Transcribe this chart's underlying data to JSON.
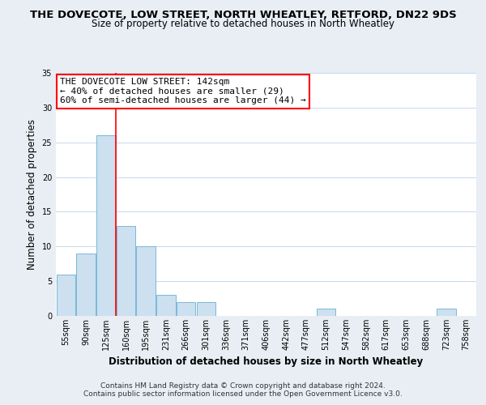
{
  "title": "THE DOVECOTE, LOW STREET, NORTH WHEATLEY, RETFORD, DN22 9DS",
  "subtitle": "Size of property relative to detached houses in North Wheatley",
  "xlabel": "Distribution of detached houses by size in North Wheatley",
  "ylabel": "Number of detached properties",
  "footer_line1": "Contains HM Land Registry data © Crown copyright and database right 2024.",
  "footer_line2": "Contains public sector information licensed under the Open Government Licence v3.0.",
  "bin_labels": [
    "55sqm",
    "90sqm",
    "125sqm",
    "160sqm",
    "195sqm",
    "231sqm",
    "266sqm",
    "301sqm",
    "336sqm",
    "371sqm",
    "406sqm",
    "442sqm",
    "477sqm",
    "512sqm",
    "547sqm",
    "582sqm",
    "617sqm",
    "653sqm",
    "688sqm",
    "723sqm",
    "758sqm"
  ],
  "bar_heights": [
    6,
    9,
    26,
    13,
    10,
    3,
    2,
    2,
    0,
    0,
    0,
    0,
    0,
    1,
    0,
    0,
    0,
    0,
    0,
    1,
    0
  ],
  "bar_color": "#cce0f0",
  "bar_edge_color": "#7ab8d8",
  "annotation_box_text": "THE DOVECOTE LOW STREET: 142sqm\n← 40% of detached houses are smaller (29)\n60% of semi-detached houses are larger (44) →",
  "annotation_box_color": "white",
  "annotation_box_edge_color": "red",
  "marker_line_color": "red",
  "ylim": [
    0,
    35
  ],
  "yticks": [
    0,
    5,
    10,
    15,
    20,
    25,
    30,
    35
  ],
  "background_color": "#e8eef4",
  "plot_background_color": "white",
  "title_fontsize": 9.5,
  "subtitle_fontsize": 8.5,
  "axis_label_fontsize": 8.5,
  "tick_fontsize": 7,
  "annotation_fontsize": 8,
  "footer_fontsize": 6.5
}
